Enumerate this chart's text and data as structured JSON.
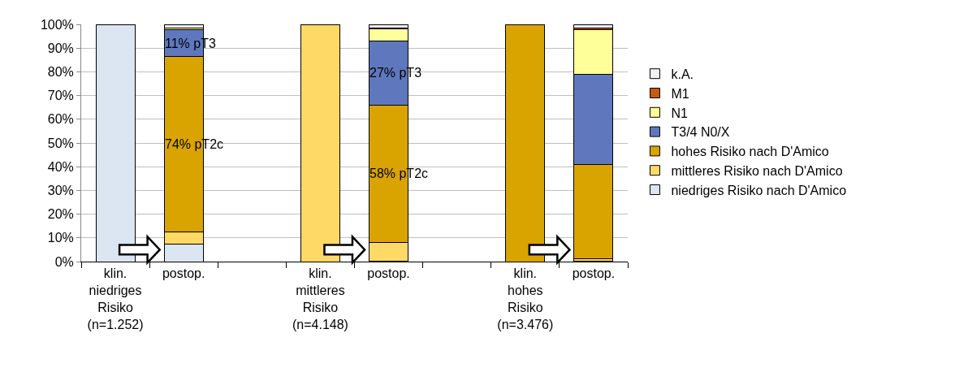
{
  "chart_data": {
    "type": "bar",
    "stacked": true,
    "categories": [
      "klin.\nniedriges\nRisiko\n(n=1.252)",
      "postop.",
      null,
      "klin.\nmittleres\nRisiko\n(n=4.148)",
      "postop.",
      null,
      "klin.\nhohes\nRisiko\n(n=3.476)",
      "postop."
    ],
    "series": [
      {
        "name": "niedriges Risiko nach D'Amico",
        "color": "#dce6f2",
        "values": [
          100,
          7.3,
          null,
          null,
          0.3,
          null,
          null,
          0.2
        ]
      },
      {
        "name": "mittleres Risiko nach D'Amico",
        "color": "#ffd966",
        "values": [
          null,
          5.2,
          null,
          100,
          7.7,
          null,
          null,
          0.9
        ]
      },
      {
        "name": "hohes Risiko nach D'Amico",
        "color": "#d9a400",
        "values": [
          null,
          74,
          null,
          null,
          58,
          null,
          100,
          39.9
        ],
        "value_labels": [
          null,
          "74% pT2c",
          null,
          null,
          "58% pT2c",
          null,
          null,
          null
        ]
      },
      {
        "name": "T3/4 N0/X",
        "color": "#5f78bd",
        "values": [
          null,
          11.2,
          null,
          null,
          27,
          null,
          null,
          37.9
        ],
        "value_labels": [
          null,
          "11% pT3",
          null,
          null,
          "27% pT3",
          null,
          null,
          null
        ]
      },
      {
        "name": "N1",
        "color": "#ffff99",
        "values": [
          null,
          0.7,
          null,
          null,
          5.2,
          null,
          null,
          18.9
        ]
      },
      {
        "name": "M1",
        "color": "#c55a11",
        "values": [
          null,
          null,
          null,
          null,
          0.1,
          null,
          null,
          0.6
        ]
      },
      {
        "name": "k.A.",
        "color": "#f2f2f2",
        "values": [
          null,
          1.6,
          null,
          null,
          1.7,
          null,
          null,
          1.6
        ]
      }
    ],
    "ylim": [
      0,
      100
    ],
    "yticks": [
      {
        "value": 0,
        "label": "0%"
      },
      {
        "value": 10,
        "label": "10%"
      },
      {
        "value": 20,
        "label": "20%"
      },
      {
        "value": 30,
        "label": "30%"
      },
      {
        "value": 40,
        "label": "40%"
      },
      {
        "value": 50,
        "label": "50%"
      },
      {
        "value": 60,
        "label": "60%"
      },
      {
        "value": 70,
        "label": "70%"
      },
      {
        "value": 80,
        "label": "80%"
      },
      {
        "value": 90,
        "label": "90%"
      },
      {
        "value": 100,
        "label": "100%"
      }
    ],
    "grid": "y",
    "legend": "right"
  }
}
